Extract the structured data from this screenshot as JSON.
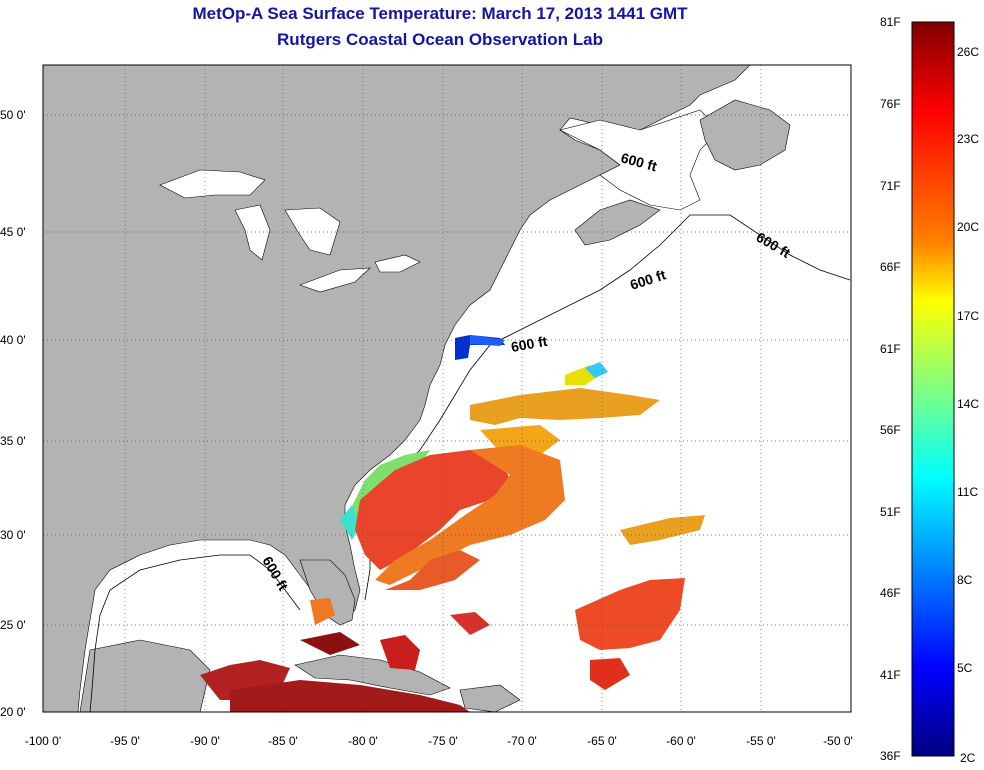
{
  "title": "MetOp-A Sea Surface Temperature:  March 17, 2013 1441 GMT",
  "subtitle": "Rutgers Coastal Ocean Observation Lab",
  "x_ticks": [
    "-100 0'",
    "-95 0'",
    "-90 0'",
    "-85 0'",
    "-80 0'",
    "-75 0'",
    "-70 0'",
    "-65 0'",
    "-60 0'",
    "-55 0'",
    "-50 0'"
  ],
  "y_ticks": [
    "50 0'",
    "45 0'",
    "40 0'",
    "35 0'",
    "30 0'",
    "25 0'",
    "20 0'"
  ],
  "contour_labels": [
    "600 ft",
    "600 ft",
    "600 ft",
    "600 ft",
    "600 ft"
  ],
  "colorbar": {
    "fahrenheit": [
      "81F",
      "76F",
      "71F",
      "66F",
      "61F",
      "56F",
      "51F",
      "46F",
      "41F",
      "36F"
    ],
    "celsius": [
      "26C",
      "23C",
      "20C",
      "17C",
      "14C",
      "11C",
      "8C",
      "5C",
      "2C"
    ],
    "colors": [
      "#8b0000",
      "#ff0000",
      "#ff8c00",
      "#ffff00",
      "#7fff7f",
      "#00ffff",
      "#0080ff",
      "#0000ff",
      "#00008b"
    ]
  },
  "colors": {
    "land": "#b3b3b3",
    "ocean": "#ffffff",
    "title": "#1414a8"
  }
}
